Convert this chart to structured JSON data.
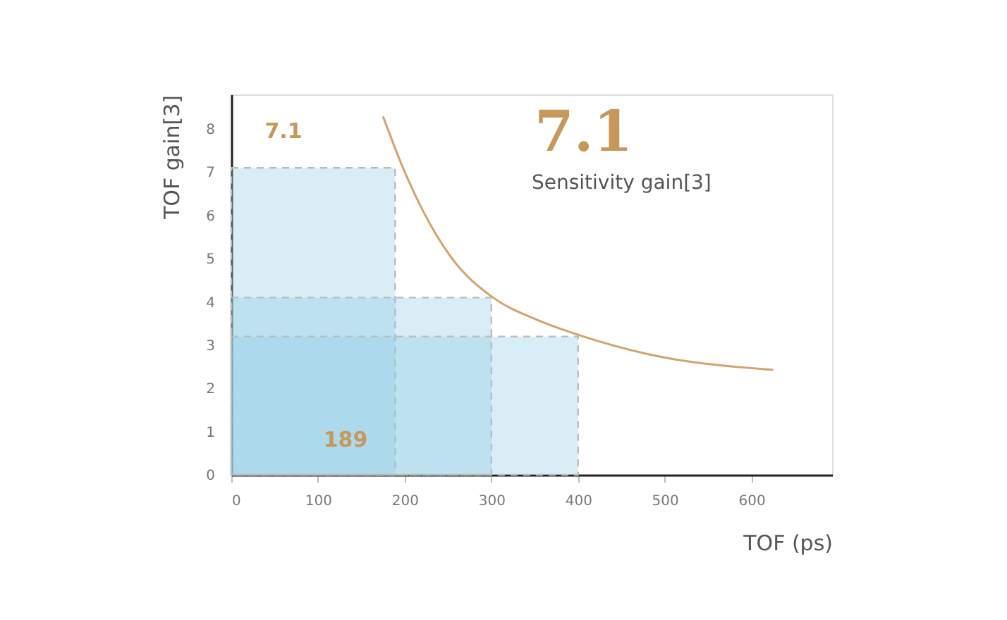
{
  "chart_data": {
    "type": "area",
    "xlabel": "TOF (ps)",
    "ylabel": "TOF gain[3]",
    "series": [
      {
        "x": [
          0,
          189
        ],
        "values": [
          7.1,
          7.1
        ],
        "color": "#8ecae6"
      },
      {
        "x": [
          0,
          300
        ],
        "values": [
          4.1,
          4.1
        ],
        "color": "#8ecae6"
      },
      {
        "x": [
          0,
          400
        ],
        "values": [
          3.2,
          3.2
        ],
        "color": "#8ecae6"
      },
      {
        "type": "line",
        "x": [
          175,
          197,
          221,
          254,
          302,
          351,
          403,
          481,
          625
        ],
        "values": [
          8.29,
          7.15,
          6.11,
          5.02,
          4.1,
          3.6,
          3.22,
          2.79,
          2.43
        ],
        "color": "#d4a36c"
      }
    ],
    "xlim": [
      0,
      693
    ],
    "ylim": [
      0,
      8.8
    ],
    "xticks": [
      0,
      100,
      200,
      300,
      400,
      500,
      600
    ],
    "yticks": [
      0,
      1,
      2,
      3,
      4,
      5,
      6,
      7,
      8
    ],
    "grid": false,
    "annotations": [
      "7.1",
      "189",
      "7.1",
      "Sensitivity gain[3]"
    ]
  }
}
